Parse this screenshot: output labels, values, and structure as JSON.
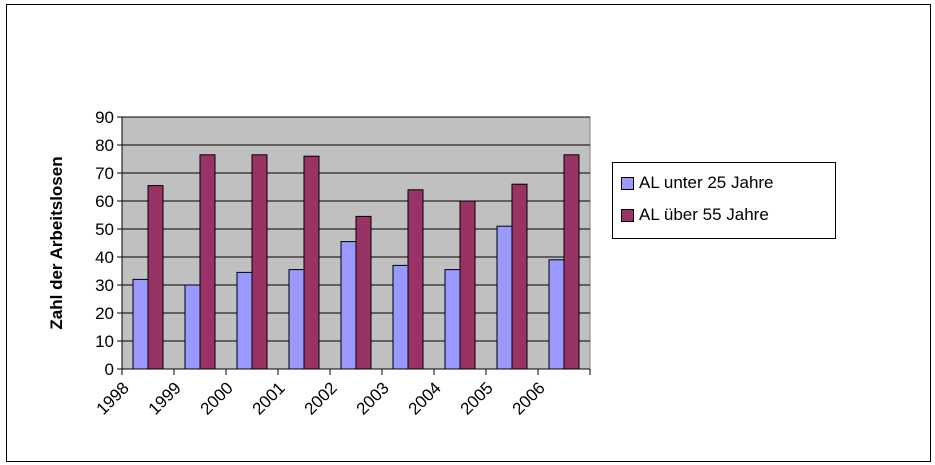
{
  "chart_data": {
    "type": "bar",
    "title": "",
    "xlabel": "",
    "ylabel": "Zahl der Arbeitslosen",
    "categories": [
      "1998",
      "1999",
      "2000",
      "2001",
      "2002",
      "2003",
      "2004",
      "2005",
      "2006"
    ],
    "series": [
      {
        "name": "AL unter 25 Jahre",
        "color": "#9999ff",
        "values": [
          32,
          30,
          34.5,
          35.5,
          45.5,
          37,
          35.5,
          51,
          39
        ]
      },
      {
        "name": "AL über 55 Jahre",
        "color": "#993366",
        "values": [
          65.5,
          76.5,
          76.5,
          76,
          54.5,
          64,
          60,
          66,
          76.5
        ]
      }
    ],
    "ylim": [
      0,
      90
    ],
    "yticks": [
      0,
      10,
      20,
      30,
      40,
      50,
      60,
      70,
      80,
      90
    ],
    "grid": true,
    "plot_background": "#c0c0c0",
    "legend_position": "right"
  }
}
